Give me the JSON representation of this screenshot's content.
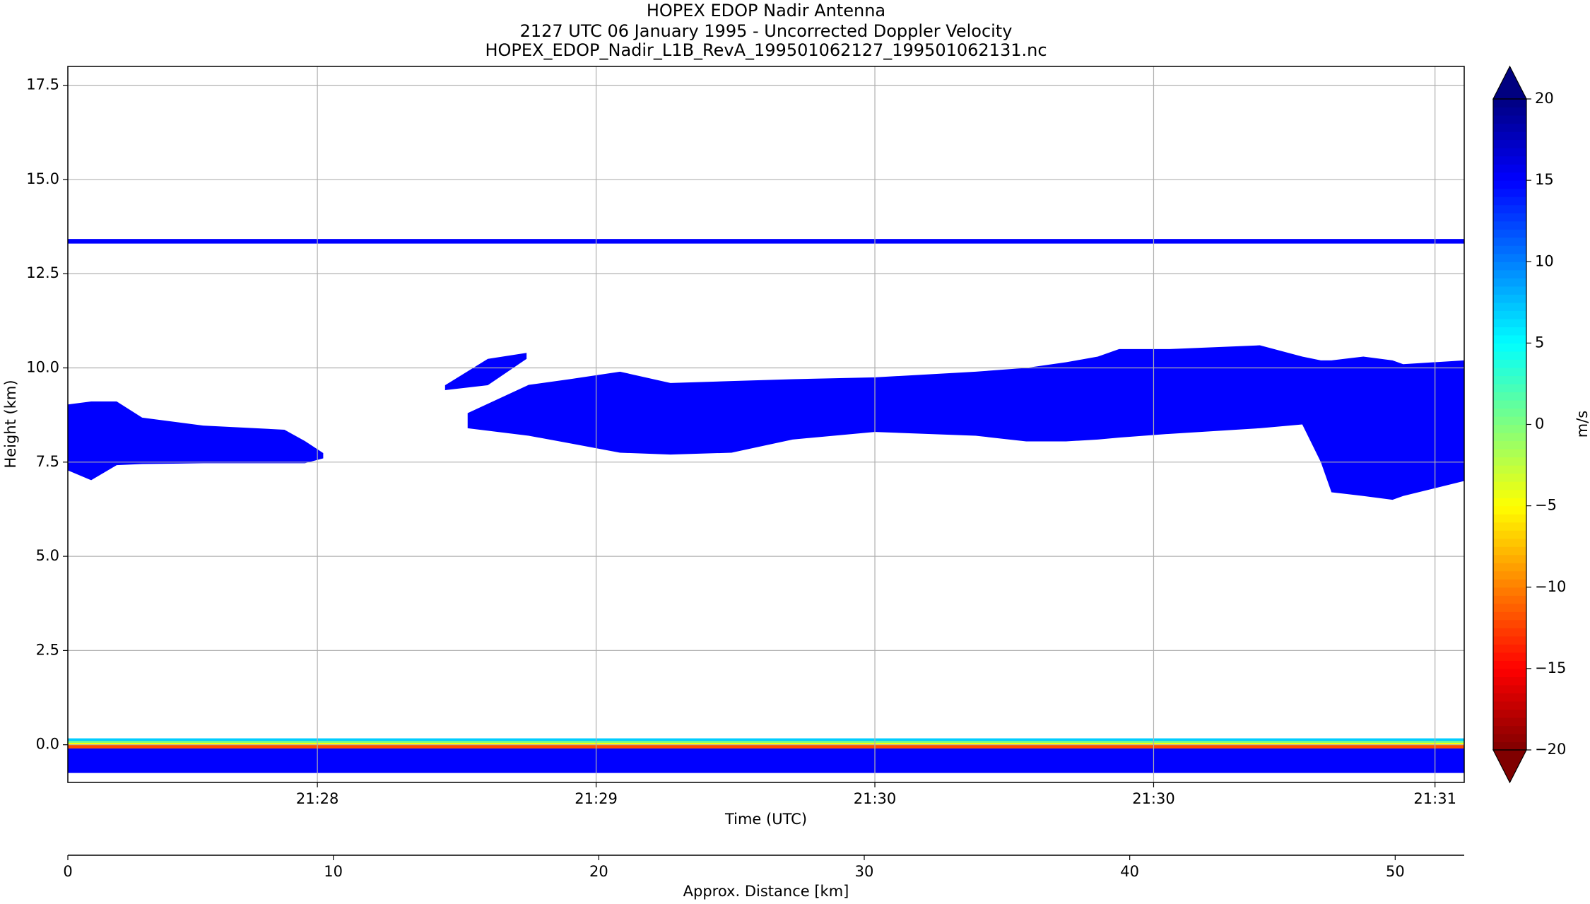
{
  "chart_data": {
    "type": "curtain",
    "title": [
      "HOPEX EDOP Nadir Antenna",
      "2127 UTC 06 January 1995 - Uncorrected Doppler Velocity",
      "HOPEX_EDOP_Nadir_L1B_RevA_199501062127_199501062131.nc"
    ],
    "xlabel": "Time (UTC)",
    "ylabel": "Height (km)",
    "distance_label": "Approx. Distance [km]",
    "colorbar_label": "m/s",
    "colormap": "jet_r",
    "clim": [
      -20,
      20
    ],
    "extend": "both",
    "grid": true,
    "xlim": [
      0,
      52.6
    ],
    "ylim": [
      -1.0,
      18.0
    ],
    "xticks": [
      {
        "value": 9.4,
        "label": "21:28"
      },
      {
        "value": 19.9,
        "label": "21:29"
      },
      {
        "value": 30.4,
        "label": "21:30"
      },
      {
        "value": 40.9,
        "label": "21:30"
      },
      {
        "value": 51.5,
        "label": "21:31"
      }
    ],
    "distance_ticks": [
      0,
      10,
      20,
      30,
      40,
      50
    ],
    "yticks": [
      {
        "value": 0,
        "label": "0.0"
      },
      2.5,
      {
        "value": 5,
        "label": "5.0"
      },
      7.5,
      {
        "value": 10,
        "label": "10.0"
      },
      12.5,
      {
        "value": 15,
        "label": "15.0"
      },
      17.5
    ],
    "cticks": [
      {
        "value": -20,
        "label": "−20"
      },
      {
        "value": -15,
        "label": "−15"
      },
      {
        "value": -10,
        "label": "−10"
      },
      {
        "value": -5,
        "label": "−5"
      },
      0,
      5,
      10,
      15,
      20
    ],
    "layers": [
      {
        "value": 15,
        "x": [
          0,
          52.6
        ],
        "top": [
          13.42,
          13.42
        ],
        "bottom": [
          13.3,
          13.3
        ]
      },
      {
        "value": 15,
        "x": [
          0,
          0.88,
          1.84,
          2.8,
          5.1,
          8.16,
          8.93,
          9.62
        ],
        "top": [
          9.03,
          9.11,
          9.11,
          8.68,
          8.47,
          8.36,
          8.06,
          7.74
        ],
        "bottom": [
          7.28,
          7.02,
          7.42,
          7.45,
          7.47,
          7.47,
          7.47,
          7.6
        ]
      },
      {
        "value": 15,
        "x": [
          14.21,
          15.82,
          17.28
        ],
        "top": [
          9.54,
          10.24,
          10.4
        ],
        "bottom": [
          9.41,
          9.54,
          10.24
        ]
      },
      {
        "value": 15,
        "x": [
          15.06,
          17.36,
          18.9,
          20.8,
          22.7,
          25.0,
          27.3,
          30.4,
          34.2,
          36.1,
          37.6,
          38.8,
          39.6,
          41.5,
          44.9,
          46.5,
          47.2,
          47.6,
          48.8,
          49.9,
          50.3,
          52.6
        ],
        "top": [
          8.8,
          9.55,
          9.7,
          9.9,
          9.6,
          9.65,
          9.7,
          9.75,
          9.9,
          10.0,
          10.15,
          10.3,
          10.5,
          10.5,
          10.6,
          10.3,
          10.2,
          10.2,
          10.3,
          10.2,
          10.1,
          10.2
        ],
        "bottom": [
          8.4,
          8.2,
          8.0,
          7.75,
          7.7,
          7.75,
          8.1,
          8.3,
          8.2,
          8.05,
          8.05,
          8.1,
          8.15,
          8.25,
          8.4,
          8.5,
          7.5,
          6.7,
          6.6,
          6.5,
          6.6,
          7.0
        ]
      },
      {
        "value": 15,
        "x": [
          0,
          52.6
        ],
        "top": [
          -0.1,
          -0.1
        ],
        "bottom": [
          -0.75,
          -0.75
        ]
      },
      {
        "value": -12,
        "x": [
          0,
          52.6
        ],
        "top": [
          0.0,
          0.0
        ],
        "bottom": [
          -0.1,
          -0.1
        ]
      },
      {
        "value": -5,
        "x": [
          0,
          52.6
        ],
        "top": [
          0.05,
          0.05
        ],
        "bottom": [
          0.0,
          0.0
        ]
      },
      {
        "value": 0,
        "x": [
          0,
          52.6
        ],
        "top": [
          0.1,
          0.1
        ],
        "bottom": [
          0.05,
          0.05
        ]
      },
      {
        "value": 7,
        "x": [
          0,
          52.6
        ],
        "top": [
          0.17,
          0.17
        ],
        "bottom": [
          0.1,
          0.1
        ]
      }
    ]
  }
}
